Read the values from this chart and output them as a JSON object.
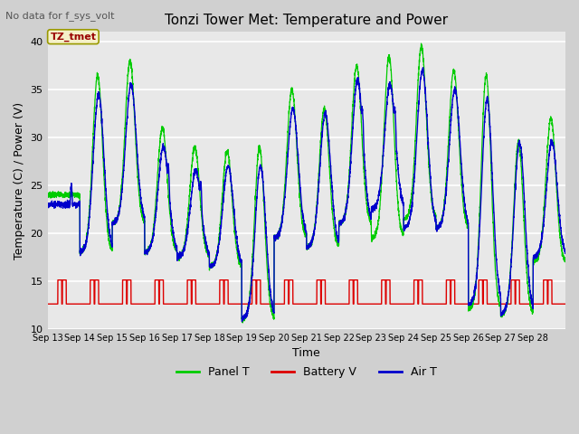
{
  "title": "Tonzi Tower Met: Temperature and Power",
  "subtitle": "No data for f_sys_volt",
  "xlabel": "Time",
  "ylabel": "Temperature (C) / Power (V)",
  "ylim": [
    10,
    41
  ],
  "yticks": [
    10,
    15,
    20,
    25,
    30,
    35,
    40
  ],
  "annotation_box": "TZ_tmet",
  "x_tick_labels": [
    "Sep 13",
    "Sep 14",
    "Sep 15",
    "Sep 16",
    "Sep 17",
    "Sep 18",
    "Sep 19",
    "Sep 20",
    "Sep 21",
    "Sep 22",
    "Sep 23",
    "Sep 24",
    "Sep 25",
    "Sep 26",
    "Sep 27",
    "Sep 28"
  ],
  "panel_peaks": [
    24.0,
    36.5,
    38.0,
    31.0,
    29.0,
    28.5,
    29.0,
    35.0,
    33.0,
    37.5,
    38.5,
    39.5,
    37.0,
    36.5,
    29.5,
    32.0
  ],
  "panel_mins": [
    24.0,
    18.0,
    21.0,
    18.0,
    17.5,
    16.5,
    11.0,
    19.5,
    18.5,
    21.0,
    19.5,
    21.5,
    20.5,
    12.0,
    11.5,
    17.0
  ],
  "air_peaks": [
    23.0,
    34.5,
    35.5,
    29.0,
    26.5,
    27.0,
    27.0,
    33.0,
    32.5,
    36.0,
    35.5,
    37.0,
    35.0,
    34.0,
    29.5,
    29.5
  ],
  "air_mins": [
    23.0,
    18.0,
    21.0,
    18.0,
    17.5,
    16.5,
    11.0,
    19.5,
    18.5,
    21.0,
    22.5,
    20.5,
    20.5,
    12.5,
    11.5,
    17.5
  ],
  "batt_base": 12.6,
  "batt_peak": 15.1,
  "n_days": 16,
  "spd": 288,
  "line_colors": {
    "panel": "#00cc00",
    "batt": "#dd0000",
    "air": "#0000cc"
  },
  "fig_facecolor": "#d0d0d0",
  "ax_facecolor": "#e8e8e8",
  "grid_color": "white"
}
